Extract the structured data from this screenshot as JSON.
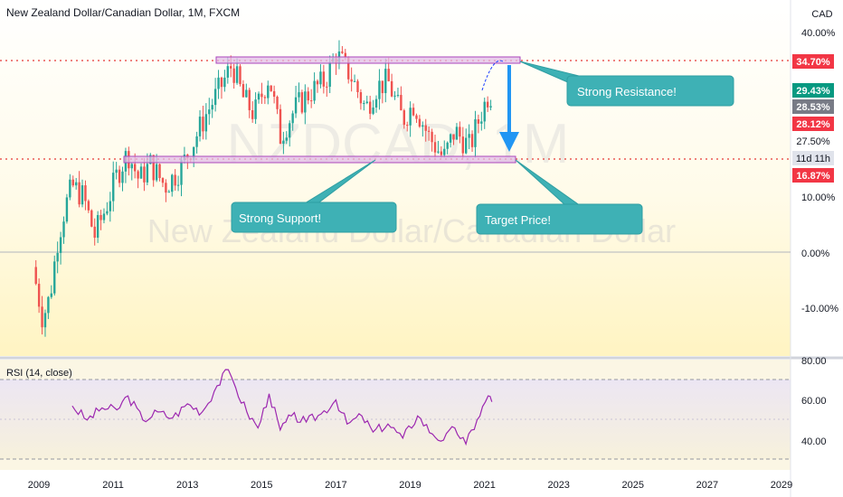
{
  "header": {
    "symbol_title": "New Zealand Dollar/Canadian Dollar, 1M, FXCM",
    "currency": "CAD",
    "watermark_symbol": "NZDCAD, 1M",
    "watermark_name": "New Zealand Dollar/Canadian Dollar"
  },
  "price_axis": {
    "ticks": [
      "40.00%",
      "10.00%",
      "0.00%",
      "-10.00%"
    ],
    "badges": [
      {
        "label": "34.70%",
        "bg": "#f23645",
        "fg": "#ffffff"
      },
      {
        "label": "29.43%",
        "bg": "#089981",
        "fg": "#ffffff"
      },
      {
        "label": "28.53%",
        "bg": "#787b86",
        "fg": "#ffffff"
      },
      {
        "label": "28.12%",
        "bg": "#f23645",
        "fg": "#ffffff"
      },
      {
        "label": "27.50%",
        "bg": "#ffffff",
        "fg": "#131722"
      },
      {
        "label": "11d 11h",
        "bg": "#e0e3eb",
        "fg": "#131722"
      },
      {
        "label": "16.87%",
        "bg": "#f23645",
        "fg": "#ffffff"
      }
    ]
  },
  "annotations": {
    "resistance": "Strong Resistance!",
    "support": "Strong Support!",
    "target": "Target Price!"
  },
  "rsi": {
    "title": "RSI (14, close)",
    "ticks": [
      "80.00",
      "60.00",
      "40.00"
    ]
  },
  "time_axis": {
    "labels": [
      "2009",
      "2011",
      "2013",
      "2015",
      "2017",
      "2019",
      "2021",
      "2023",
      "2025",
      "2027",
      "2029"
    ]
  },
  "colors": {
    "up": "#26a69a",
    "down": "#ef5350",
    "level_line": "#e53935",
    "box_fill": "#e1bee7",
    "box_border": "#ab47bc",
    "callout_bg": "#3eb1b5",
    "arrow": "#2196f3",
    "rsi_line": "#9c27b0"
  },
  "chart_data": {
    "type": "candlestick",
    "x_range": [
      2008.5,
      2029.7
    ],
    "y_range_percent": [
      -16,
      43
    ],
    "levels": {
      "resistance": 34.7,
      "support": 16.87
    },
    "series": [
      {
        "name": "NZDCAD",
        "points": [
          [
            2008.9,
            -5
          ],
          [
            2009.1,
            -12
          ],
          [
            2009.3,
            -8
          ],
          [
            2009.5,
            2
          ],
          [
            2009.7,
            8
          ],
          [
            2009.9,
            12
          ],
          [
            2010.2,
            10
          ],
          [
            2010.5,
            3
          ],
          [
            2010.8,
            8
          ],
          [
            2011.1,
            14
          ],
          [
            2011.4,
            18
          ],
          [
            2011.7,
            13
          ],
          [
            2012.0,
            16
          ],
          [
            2012.4,
            12
          ],
          [
            2012.8,
            15
          ],
          [
            2013.1,
            19
          ],
          [
            2013.5,
            25
          ],
          [
            2013.9,
            30
          ],
          [
            2014.2,
            34
          ],
          [
            2014.5,
            28
          ],
          [
            2014.8,
            25
          ],
          [
            2015.2,
            32
          ],
          [
            2015.5,
            21
          ],
          [
            2015.9,
            26
          ],
          [
            2016.3,
            29
          ],
          [
            2016.7,
            31
          ],
          [
            2017.0,
            36
          ],
          [
            2017.4,
            32
          ],
          [
            2017.8,
            26
          ],
          [
            2018.1,
            30
          ],
          [
            2018.4,
            31
          ],
          [
            2018.8,
            24
          ],
          [
            2019.1,
            27
          ],
          [
            2019.5,
            21
          ],
          [
            2019.9,
            17
          ],
          [
            2020.2,
            22
          ],
          [
            2020.6,
            19
          ],
          [
            2020.9,
            25
          ],
          [
            2021.1,
            28.53
          ]
        ]
      }
    ],
    "rsi_series": {
      "name": "RSI (14, close)",
      "y_range": [
        30,
        80
      ],
      "points": [
        [
          2009.9,
          57
        ],
        [
          2010.3,
          50
        ],
        [
          2010.7,
          56
        ],
        [
          2011.1,
          55
        ],
        [
          2011.4,
          62
        ],
        [
          2011.8,
          50
        ],
        [
          2012.2,
          54
        ],
        [
          2012.6,
          51
        ],
        [
          2013.0,
          58
        ],
        [
          2013.4,
          54
        ],
        [
          2013.8,
          67
        ],
        [
          2014.1,
          75
        ],
        [
          2014.3,
          66
        ],
        [
          2014.6,
          54
        ],
        [
          2014.9,
          46
        ],
        [
          2015.2,
          63
        ],
        [
          2015.5,
          45
        ],
        [
          2015.8,
          52
        ],
        [
          2016.2,
          49
        ],
        [
          2016.6,
          53
        ],
        [
          2017.0,
          60
        ],
        [
          2017.3,
          48
        ],
        [
          2017.7,
          52
        ],
        [
          2018.0,
          44
        ],
        [
          2018.4,
          48
        ],
        [
          2018.8,
          41
        ],
        [
          2019.2,
          52
        ],
        [
          2019.6,
          43
        ],
        [
          2019.9,
          40
        ],
        [
          2020.2,
          46
        ],
        [
          2020.5,
          38
        ],
        [
          2020.8,
          50
        ],
        [
          2021.1,
          62
        ],
        [
          2021.2,
          59
        ]
      ]
    }
  }
}
